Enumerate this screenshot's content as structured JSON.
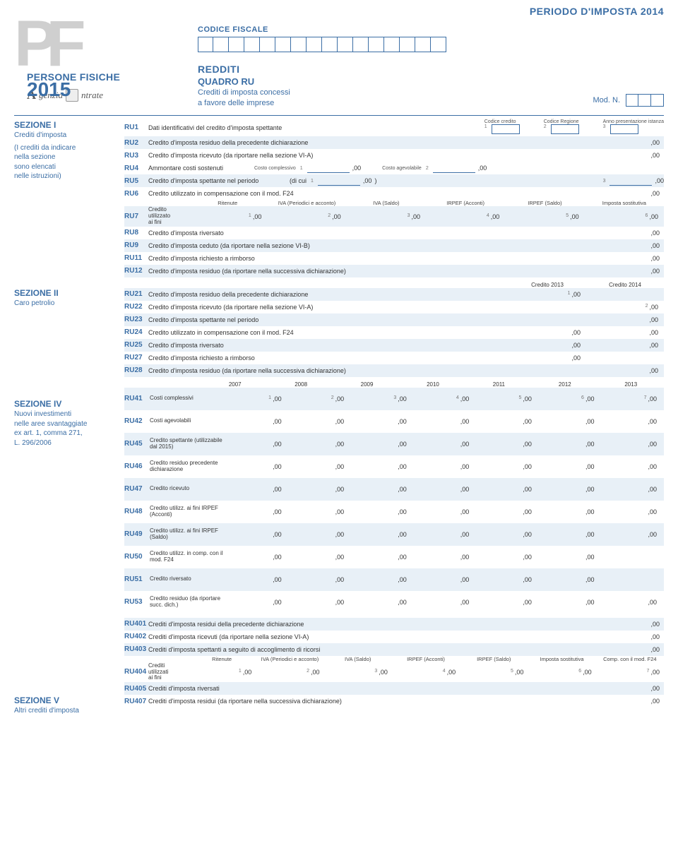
{
  "period_header": "PERIODO D'IMPOSTA 2014",
  "logo": {
    "pf": "PF",
    "persone": "PERSONE FISICHE",
    "year": "2015",
    "agenzia1": "genzia",
    "agenzia2": "ntrate"
  },
  "header": {
    "cf_label": "CODICE FISCALE",
    "cf_box_count": 16,
    "redditi": "REDDITI",
    "quadro": "QUADRO RU",
    "sub1": "Crediti di imposta concessi",
    "sub2": "a favore delle imprese",
    "modn_label": "Mod. N.",
    "modn_boxes": 3
  },
  "zero": ",00",
  "sections": {
    "s1": {
      "title": "SEZIONE I",
      "sub1": "Crediti d'imposta",
      "sub2": "(I crediti da indicare",
      "sub3": "nella sezione",
      "sub4": "sono elencati",
      "sub5": "nelle istruzioni)"
    },
    "s2": {
      "title": "SEZIONE II",
      "sub": "Caro petrolio"
    },
    "s4": {
      "title": "SEZIONE IV",
      "sub1": "Nuovi investimenti",
      "sub2": "nelle aree svantaggiate",
      "sub3": "ex art. 1, comma 271,",
      "sub4": "L. 296/2006"
    },
    "s5": {
      "title": "SEZIONE V",
      "sub": "Altri crediti d'imposta"
    }
  },
  "ru1": {
    "code": "RU1",
    "desc": "Dati identificativi del credito d'imposta spettante",
    "h1": "Codice credito",
    "h2": "Codice Regione",
    "h3": "Anno presentazione istanza"
  },
  "ru_rows": [
    {
      "code": "RU2",
      "desc": "Credito d'imposta residuo della precedente dichiarazione",
      "end00": true
    },
    {
      "code": "RU3",
      "desc": "Credito d'imposta ricevuto (da riportare nella sezione VI-A)",
      "end00": true
    }
  ],
  "ru4": {
    "code": "RU4",
    "desc": "Ammontare costi sostenuti",
    "l1": "Costo complessivo",
    "l2": "Costo agevolabile"
  },
  "ru5": {
    "code": "RU5",
    "desc": "Credito d'imposta spettante nel periodo",
    "paren": "(di cui",
    "close": ")"
  },
  "ru6": {
    "code": "RU6",
    "desc": "Credito utilizzato in compensazione con il mod. F24"
  },
  "ru7": {
    "code": "RU7",
    "desc1": "Credito",
    "desc2": "utilizzato",
    "desc3": "ai fini",
    "cols": [
      "Ritenute",
      "IVA (Periodici e acconto)",
      "IVA (Saldo)",
      "IRPEF (Acconti)",
      "IRPEF (Saldo)",
      "Imposta sostitutiva"
    ]
  },
  "ru8_12": [
    {
      "code": "RU8",
      "desc": "Credito d'imposta riversato"
    },
    {
      "code": "RU9",
      "desc": "Credito d'imposta ceduto (da riportare nella sezione VI-B)"
    },
    {
      "code": "RU11",
      "desc": "Credito d'imposta richiesto a rimborso"
    },
    {
      "code": "RU12",
      "desc": "Credito d'imposta residuo (da riportare nella successiva dichiarazione)"
    }
  ],
  "sec2_header": {
    "c1": "Credito 2013",
    "c2": "Credito 2014"
  },
  "sec2_rows": [
    {
      "code": "RU21",
      "desc": "Credito d'imposta residuo della precedente dichiarazione",
      "c1": true,
      "c2": false
    },
    {
      "code": "RU22",
      "desc": "Credito d'imposta ricevuto (da riportare nella sezione VI-A)",
      "c1": false,
      "c2": true
    },
    {
      "code": "RU23",
      "desc": "Credito d'imposta spettante nel periodo",
      "c1": false,
      "c2": true
    },
    {
      "code": "RU24",
      "desc": "Credito utilizzato in compensazione con il mod. F24",
      "c1": true,
      "c2": true
    },
    {
      "code": "RU25",
      "desc": "Credito d'imposta riversato",
      "c1": true,
      "c2": true
    },
    {
      "code": "RU27",
      "desc": "Credito d'imposta richiesto a rimborso",
      "c1": true,
      "c2": false
    },
    {
      "code": "RU28",
      "desc": "Credito d'imposta residuo (da riportare nella successiva dichiarazione)",
      "c1": false,
      "c2": true
    }
  ],
  "sec4_years": [
    "2007",
    "2008",
    "2009",
    "2010",
    "2011",
    "2012",
    "2013"
  ],
  "sec4_rows": [
    {
      "code": "RU41",
      "lbl": "Costi complessivi",
      "cells": 7,
      "nums": true
    },
    {
      "code": "RU42",
      "lbl": "Costi agevolabili",
      "cells": 7
    },
    {
      "code": "RU45",
      "lbl": "Credito spettante (utilizzabile dal 2015)",
      "cells": 7
    },
    {
      "code": "RU46",
      "lbl": "Credito residuo precedente dichiarazione",
      "cells": 7
    },
    {
      "code": "RU47",
      "lbl": "Credito ricevuto",
      "cells": 7
    },
    {
      "code": "RU48",
      "lbl": "Credito utilizz. ai fini IRPEF (Acconti)",
      "cells": 7
    },
    {
      "code": "RU49",
      "lbl": "Credito utilizz. ai fini IRPEF (Saldo)",
      "cells": 7
    },
    {
      "code": "RU50",
      "lbl": "Credito utilizz. in comp. con il mod. F24",
      "cells": 6
    },
    {
      "code": "RU51",
      "lbl": "Credito riversato",
      "cells": 6
    },
    {
      "code": "RU53",
      "lbl": "Credito residuo (da riportare succ. dich.)",
      "cells": 7
    }
  ],
  "sec5_rows1": [
    {
      "code": "RU401",
      "desc": "Crediti d'imposta residui della precedente dichiarazione"
    },
    {
      "code": "RU402",
      "desc": "Crediti d'imposta ricevuti (da riportare nella sezione VI-A)"
    },
    {
      "code": "RU403",
      "desc": "Crediti d'imposta spettanti a seguito di accoglimento di ricorsi"
    }
  ],
  "ru404": {
    "code": "RU404",
    "desc1": "Crediti",
    "desc2": "utilizzati",
    "desc3": "ai fini",
    "cols": [
      "Ritenute",
      "IVA (Periodici e acconto)",
      "IVA (Saldo)",
      "IRPEF (Acconti)",
      "IRPEF (Saldo)",
      "Imposta sostitutiva",
      "Comp. con il mod. F24"
    ]
  },
  "sec5_rows2": [
    {
      "code": "RU405",
      "desc": "Crediti d'imposta riversati"
    },
    {
      "code": "RU407",
      "desc": "Crediti d'imposta residui (da riportare nella successiva dichiarazione)"
    }
  ]
}
